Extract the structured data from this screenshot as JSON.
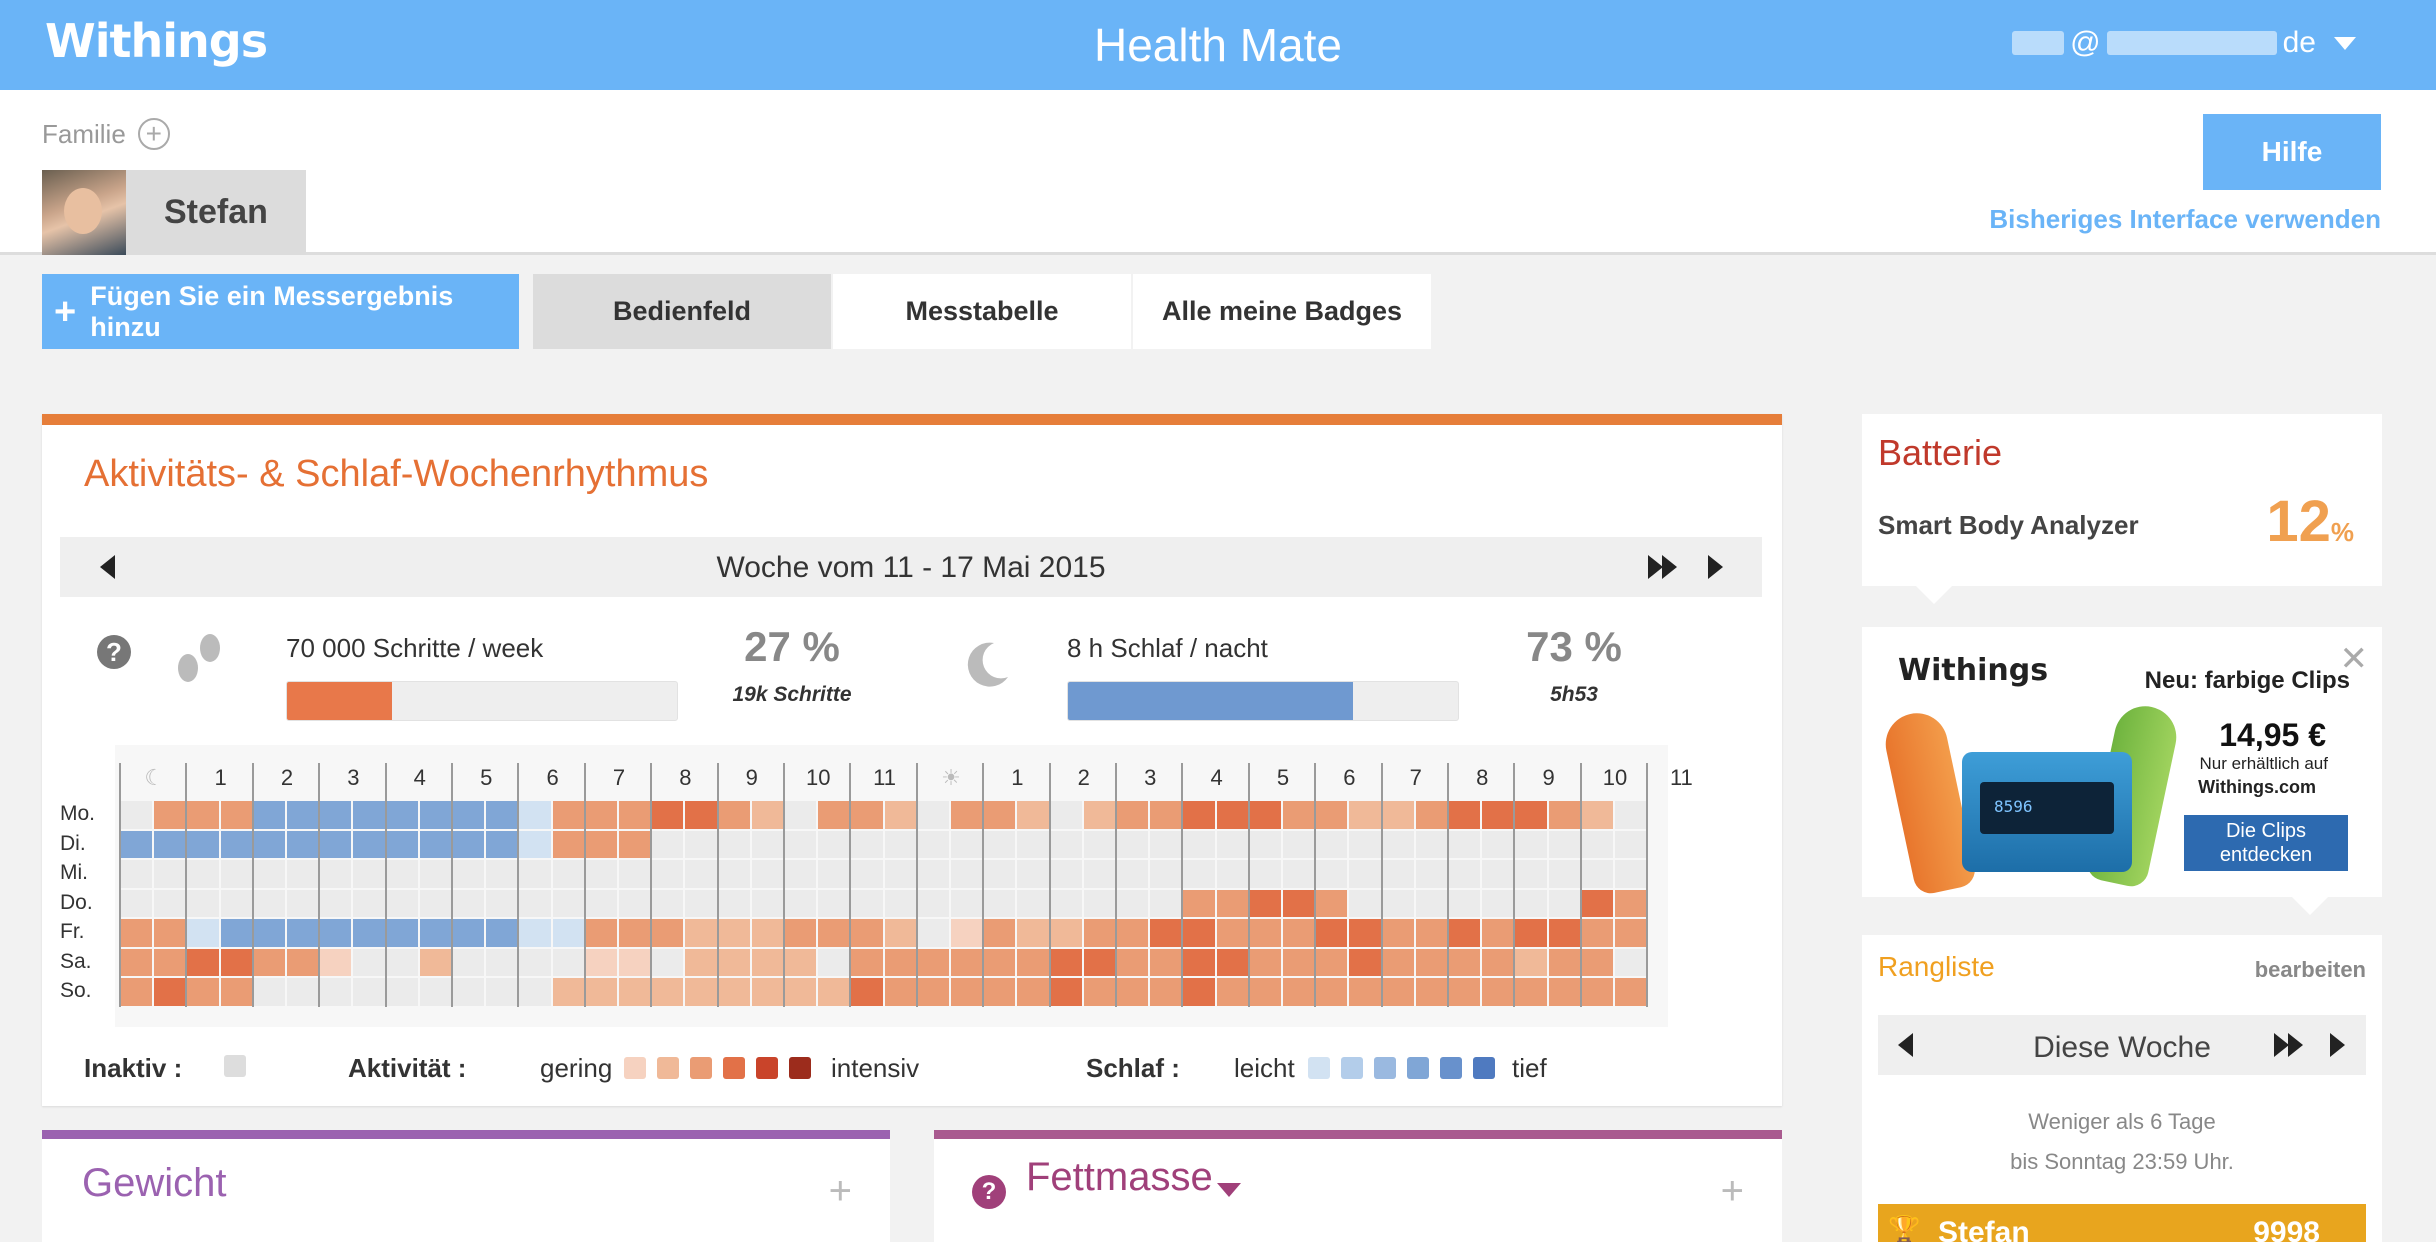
{
  "topbar": {
    "logo": "Withings",
    "app_title": "Health Mate",
    "account_at": "@",
    "account_tld": "de"
  },
  "header": {
    "family_label": "Familie",
    "user_name": "Stefan",
    "help_label": "Hilfe",
    "legacy_link": "Bisheriges Interface verwenden"
  },
  "nav": {
    "add_label": "Fügen Sie ein Messergebnis hinzu",
    "tabs": [
      {
        "label": "Bedienfeld",
        "active": true
      },
      {
        "label": "Messtabelle",
        "active": false
      },
      {
        "label": "Alle meine Badges",
        "active": false
      }
    ]
  },
  "activity": {
    "title": "Aktivitäts- & Schlaf-Wochenrhythmus",
    "week_label": "Woche vom 11 - 17 Mai 2015",
    "steps_goal": "70 000 Schritte / week",
    "steps_progress": 0.27,
    "steps_pct": "27 %",
    "steps_value": "19k Schritte",
    "sleep_goal": "8 h Schlaf / nacht",
    "sleep_progress": 0.73,
    "sleep_pct": "73 %",
    "sleep_value": "5h53",
    "colors": {
      "activity": "#e8784a",
      "sleep": "#6f99d0",
      "accent": "#e67e3a"
    }
  },
  "heatmap": {
    "hour_labels": [
      "1",
      "2",
      "3",
      "4",
      "5",
      "6",
      "7",
      "8",
      "9",
      "10",
      "11",
      "",
      "1",
      "2",
      "3",
      "4",
      "5",
      "6",
      "7",
      "8",
      "9",
      "10",
      "11"
    ],
    "days": [
      "Mo.",
      "Di.",
      "Mi.",
      "Do.",
      "Fr.",
      "Sa.",
      "So."
    ],
    "grid": [
      "0AAASSSSSSSSsBBBCCBb0BBb0BBb0bBBCCCBBbbBCCCBb0",
      "SSSSSSSSSSSSsBAA0000000000000000000000000000000",
      "000000000000000000000000000000000000000000000000",
      "00000000000000000000000000000000AACCA0000000CAA",
      "AAsSSSSSSSSSssBBAbbbABBb0aAbbAACCAABCCAACBCCAAB",
      "ABCCBAa00b0000aa0bbbb0BBABBBCCBBCCBAACBBAAbBA0",
      "ACAA000000000bbbbbbbbbCBBAABCBABCABBABBAABBAABB"
    ]
  },
  "legend": {
    "inactive_label": "Inaktiv :",
    "activity_label": "Aktivität :",
    "activity_low": "gering",
    "activity_high": "intensiv",
    "sleep_label": "Schlaf :",
    "sleep_low": "leicht",
    "sleep_high": "tief",
    "inactive_color": "#dddddd",
    "activity_colors": [
      "#f6d2c0",
      "#f0b998",
      "#ea9c74",
      "#e27148",
      "#c9442a",
      "#9c2c1c"
    ],
    "sleep_colors": [
      "#d2e2f2",
      "#b3cdea",
      "#9ab9e0",
      "#80a6d6",
      "#6891cc",
      "#4f7ac0"
    ]
  },
  "battery": {
    "title": "Batterie",
    "device": "Smart Body Analyzer",
    "value": "12",
    "unit": "%"
  },
  "ad": {
    "logo": "Withings",
    "headline": "Neu: farbige Clips",
    "price": "14,95 €",
    "note": "Nur erhältlich auf",
    "site": "Withings.com",
    "cta": "Die Clips entdecken",
    "device_screen": "8596"
  },
  "ranking": {
    "title": "Rangliste",
    "edit": "bearbeiten",
    "period": "Diese Woche",
    "note_line1": "Weniger als 6 Tage",
    "note_line2": "bis Sonntag 23:59 Uhr.",
    "row_name": "Stefan",
    "row_value": "9998"
  },
  "bottom": {
    "weight_title": "Gewicht",
    "fat_title": "Fettmasse",
    "weight_color": "#9b62b0",
    "fat_color": "#a0407a"
  }
}
